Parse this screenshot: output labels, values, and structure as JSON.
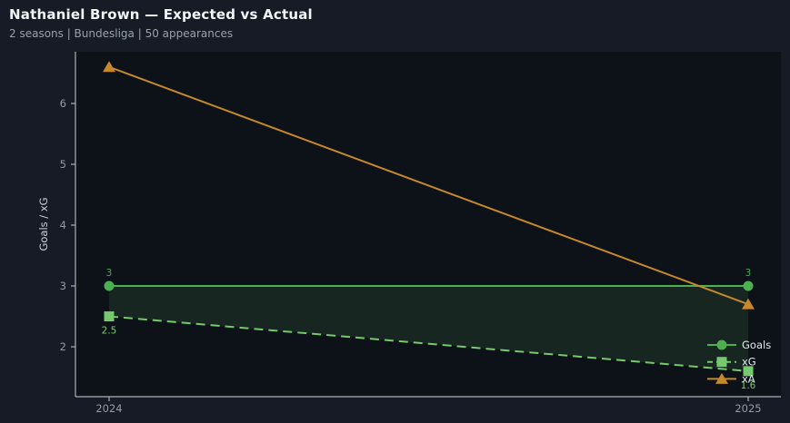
{
  "header": {
    "title": "Nathaniel Brown — Expected vs Actual",
    "subtitle": "2 seasons | Bundesliga | 50 appearances"
  },
  "chart_data": {
    "type": "line",
    "title": "Nathaniel Brown — Expected vs Actual",
    "subtitle": "2 seasons | Bundesliga | 50 appearances",
    "x": [
      "2024",
      "2025"
    ],
    "xlabel": "",
    "ylabel": "Goals / xG",
    "ylim": [
      1.18,
      6.85
    ],
    "yticks": [
      2,
      3,
      4,
      5,
      6
    ],
    "grid": false,
    "legend_position": "lower-right",
    "legend_entries": [
      "Goals",
      "xG",
      "xA"
    ],
    "series": [
      {
        "name": "Goals",
        "values": [
          3,
          3
        ],
        "labels": [
          "3",
          "3"
        ],
        "label_pos": "above",
        "color": "#4caf50",
        "line_style": "solid",
        "marker": "circle"
      },
      {
        "name": "xG",
        "values": [
          2.5,
          1.6
        ],
        "labels": [
          "2.5",
          "1.6"
        ],
        "label_pos": "below",
        "color": "#76c96d",
        "line_style": "dashed",
        "marker": "square"
      },
      {
        "name": "xA",
        "values": [
          6.6,
          2.7
        ],
        "labels": [],
        "label_pos": "none",
        "color": "#c5892c",
        "line_style": "solid",
        "marker": "triangle-up"
      }
    ],
    "fill_between": {
      "series": [
        "Goals",
        "xG"
      ],
      "color": "rgba(95,185,95,0.13)"
    }
  },
  "colors": {
    "figure_bg": "#171b26",
    "plot_bg": "#0d1118",
    "title": "#f2f5f8",
    "subtitle": "#99a1ac",
    "axis_line": "#aab1bb",
    "tick_label": "#939ca7",
    "axis_label": "#ccd1d9",
    "legend_text": "#e3e7ec"
  }
}
